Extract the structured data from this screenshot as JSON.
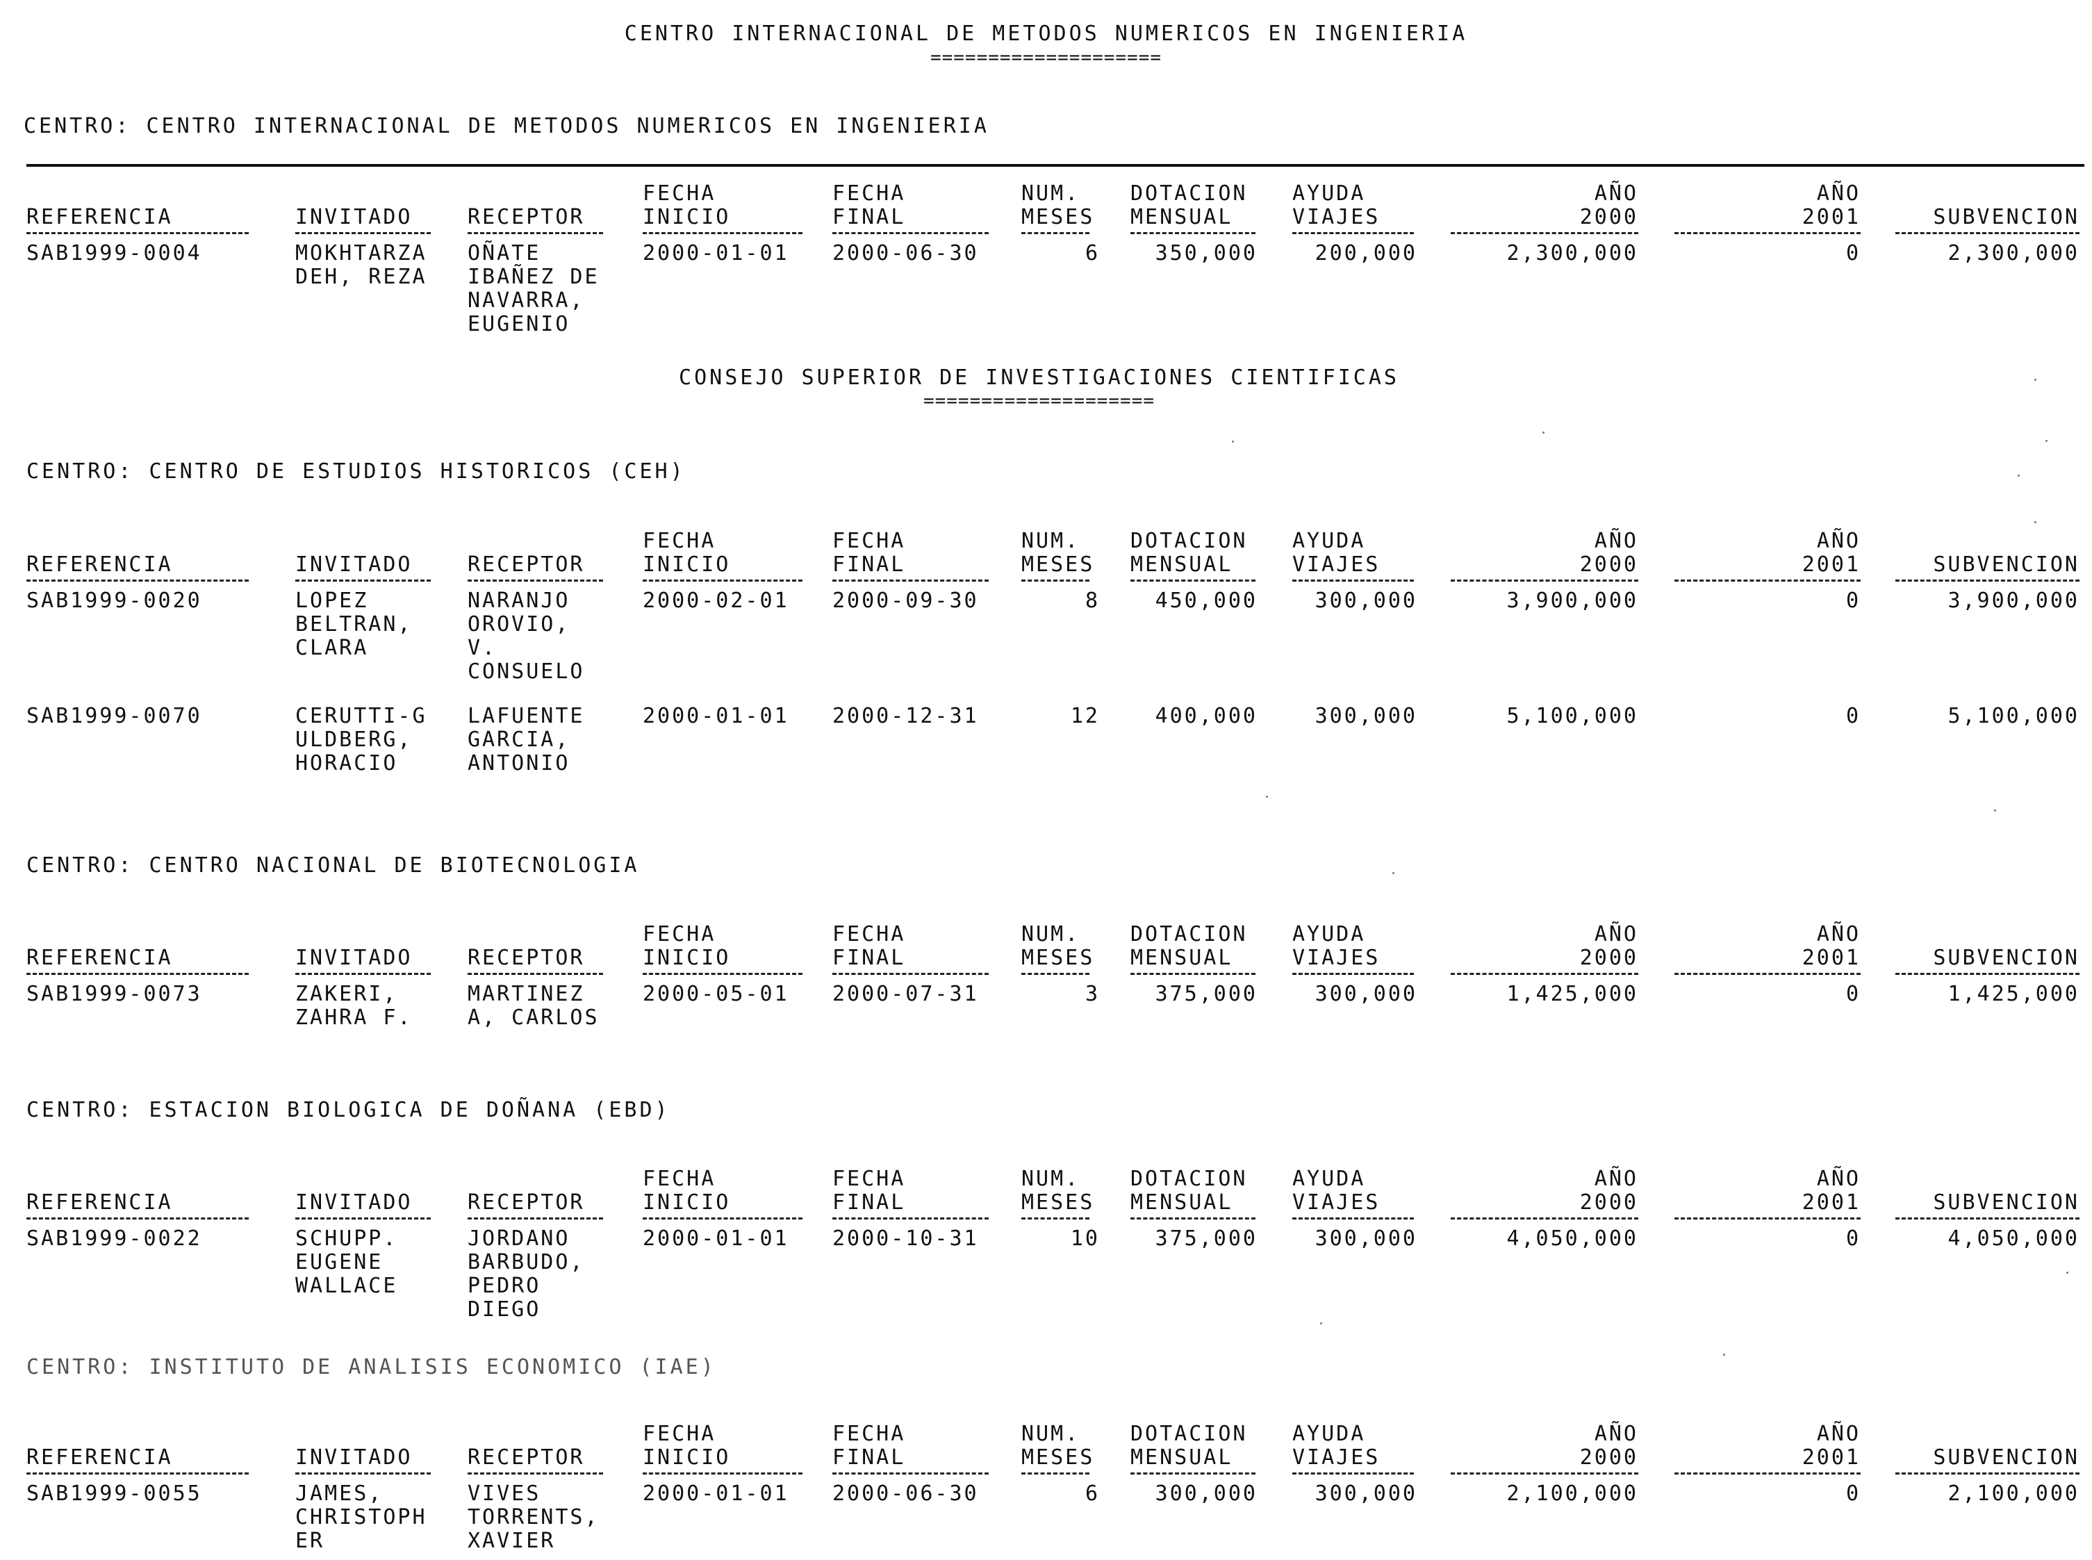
{
  "header": {
    "title": "CENTRO INTERNACIONAL DE METODOS NUMERICOS EN INGENIERIA",
    "underline": "===================="
  },
  "columns": {
    "referencia": "REFERENCIA",
    "invitado": "INVITADO",
    "receptor": "RECEPTOR",
    "fecha_inicio": [
      "FECHA",
      "INICIO"
    ],
    "fecha_final": [
      "FECHA",
      "FINAL"
    ],
    "num_meses": [
      "NUM.",
      "MESES"
    ],
    "dotacion_mensual": [
      "DOTACION",
      "MENSUAL"
    ],
    "ayuda_viajes": [
      "AYUDA",
      "VIAJES"
    ],
    "ano_2000": [
      "AÑO",
      "2000"
    ],
    "ano_2001": [
      "AÑO",
      "2001"
    ],
    "subvencion": "SUBVENCION"
  },
  "section2": {
    "title": "CONSEJO SUPERIOR DE INVESTIGACIONES CIENTIFICAS",
    "underline": "===================="
  },
  "blocks": [
    {
      "centro": "CENTRO: CENTRO INTERNACIONAL DE METODOS NUMERICOS EN INGENIERIA",
      "rows": [
        {
          "referencia": "SAB1999-0004",
          "invitado": [
            "MOKHTARZA",
            "DEH, REZA"
          ],
          "receptor": [
            "OÑATE",
            "IBAÑEZ DE",
            "NAVARRA,",
            "EUGENIO"
          ],
          "fecha_inicio": "2000-01-01",
          "fecha_final": "2000-06-30",
          "num_meses": "6",
          "dotacion_mensual": "350,000",
          "ayuda_viajes": "200,000",
          "ano_2000": "2,300,000",
          "ano_2001": "0",
          "subvencion": "2,300,000"
        }
      ]
    },
    {
      "centro": "CENTRO: CENTRO DE ESTUDIOS HISTORICOS (CEH)",
      "rows": [
        {
          "referencia": "SAB1999-0020",
          "invitado": [
            "LOPEZ",
            "BELTRAN,",
            "CLARA"
          ],
          "receptor": [
            "NARANJO",
            "OROVIO,",
            "V.",
            "CONSUELO"
          ],
          "fecha_inicio": "2000-02-01",
          "fecha_final": "2000-09-30",
          "num_meses": "8",
          "dotacion_mensual": "450,000",
          "ayuda_viajes": "300,000",
          "ano_2000": "3,900,000",
          "ano_2001": "0",
          "subvencion": "3,900,000"
        },
        {
          "referencia": "SAB1999-0070",
          "invitado": [
            "CERUTTI-G",
            "ULDBERG,",
            "HORACIO"
          ],
          "receptor": [
            "LAFUENTE",
            "GARCIA,",
            "ANTONIO"
          ],
          "fecha_inicio": "2000-01-01",
          "fecha_final": "2000-12-31",
          "num_meses": "12",
          "dotacion_mensual": "400,000",
          "ayuda_viajes": "300,000",
          "ano_2000": "5,100,000",
          "ano_2001": "0",
          "subvencion": "5,100,000"
        }
      ]
    },
    {
      "centro": "CENTRO: CENTRO NACIONAL DE BIOTECNOLOGIA",
      "rows": [
        {
          "referencia": "SAB1999-0073",
          "invitado": [
            "ZAKERI,",
            "ZAHRA F."
          ],
          "receptor": [
            "MARTINEZ",
            "A, CARLOS"
          ],
          "fecha_inicio": "2000-05-01",
          "fecha_final": "2000-07-31",
          "num_meses": "3",
          "dotacion_mensual": "375,000",
          "ayuda_viajes": "300,000",
          "ano_2000": "1,425,000",
          "ano_2001": "0",
          "subvencion": "1,425,000"
        }
      ]
    },
    {
      "centro": "CENTRO: ESTACION BIOLOGICA DE DOÑANA (EBD)",
      "rows": [
        {
          "referencia": "SAB1999-0022",
          "invitado": [
            "SCHUPP.",
            "EUGENE",
            "WALLACE"
          ],
          "receptor": [
            "JORDANO",
            "BARBUDO,",
            "PEDRO",
            "DIEGO"
          ],
          "fecha_inicio": "2000-01-01",
          "fecha_final": "2000-10-31",
          "num_meses": "10",
          "dotacion_mensual": "375,000",
          "ayuda_viajes": "300,000",
          "ano_2000": "4,050,000",
          "ano_2001": "0",
          "subvencion": "4,050,000"
        }
      ]
    },
    {
      "centro": "CENTRO: INSTITUTO DE ANALISIS ECONOMICO (IAE)",
      "rows": [
        {
          "referencia": "SAB1999-0055",
          "invitado": [
            "JAMES,",
            "CHRISTOPH",
            "ER"
          ],
          "receptor": [
            "VIVES",
            "TORRENTS,",
            "XAVIER"
          ],
          "fecha_inicio": "2000-01-01",
          "fecha_final": "2000-06-30",
          "num_meses": "6",
          "dotacion_mensual": "300,000",
          "ayuda_viajes": "300,000",
          "ano_2000": "2,100,000",
          "ano_2001": "0",
          "subvencion": "2,100,000"
        }
      ]
    }
  ]
}
